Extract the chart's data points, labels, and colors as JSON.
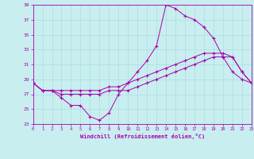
{
  "xlabel": "Windchill (Refroidissement éolien,°C)",
  "bg_color": "#c8eef0",
  "line_color": "#aa00aa",
  "grid_color": "#aadddd",
  "xlim": [
    0,
    23
  ],
  "ylim": [
    23,
    39
  ],
  "xticks": [
    0,
    1,
    2,
    3,
    4,
    5,
    6,
    7,
    8,
    9,
    10,
    11,
    12,
    13,
    14,
    15,
    16,
    17,
    18,
    19,
    20,
    21,
    22,
    23
  ],
  "yticks": [
    23,
    25,
    27,
    29,
    31,
    33,
    35,
    37,
    39
  ],
  "line1_x": [
    0,
    1,
    2,
    3,
    4,
    5,
    6,
    7,
    8,
    9,
    10,
    11,
    12,
    13,
    14,
    15,
    16,
    17,
    18,
    19,
    20,
    21,
    22,
    23
  ],
  "line1_y": [
    28.5,
    27.5,
    27.5,
    26.5,
    25.5,
    25.5,
    24.0,
    23.5,
    24.5,
    27.0,
    28.5,
    30.0,
    31.5,
    33.5,
    39.0,
    38.5,
    37.5,
    37.0,
    36.0,
    34.5,
    32.0,
    30.0,
    29.0,
    28.5
  ],
  "line2_x": [
    0,
    1,
    2,
    3,
    4,
    5,
    6,
    7,
    8,
    9,
    10,
    11,
    12,
    13,
    14,
    15,
    16,
    17,
    18,
    19,
    20,
    21,
    22,
    23
  ],
  "line2_y": [
    28.5,
    27.5,
    27.5,
    27.5,
    27.5,
    27.5,
    27.5,
    27.5,
    28.0,
    28.0,
    28.5,
    29.0,
    29.5,
    30.0,
    30.5,
    31.0,
    31.5,
    32.0,
    32.5,
    32.5,
    32.5,
    32.0,
    30.0,
    28.5
  ],
  "line3_x": [
    0,
    1,
    2,
    3,
    4,
    5,
    6,
    7,
    8,
    9,
    10,
    11,
    12,
    13,
    14,
    15,
    16,
    17,
    18,
    19,
    20,
    21,
    22,
    23
  ],
  "line3_y": [
    28.5,
    27.5,
    27.5,
    27.0,
    27.0,
    27.0,
    27.0,
    27.0,
    27.5,
    27.5,
    27.5,
    28.0,
    28.5,
    29.0,
    29.5,
    30.0,
    30.5,
    31.0,
    31.5,
    32.0,
    32.0,
    32.0,
    30.0,
    28.5
  ]
}
